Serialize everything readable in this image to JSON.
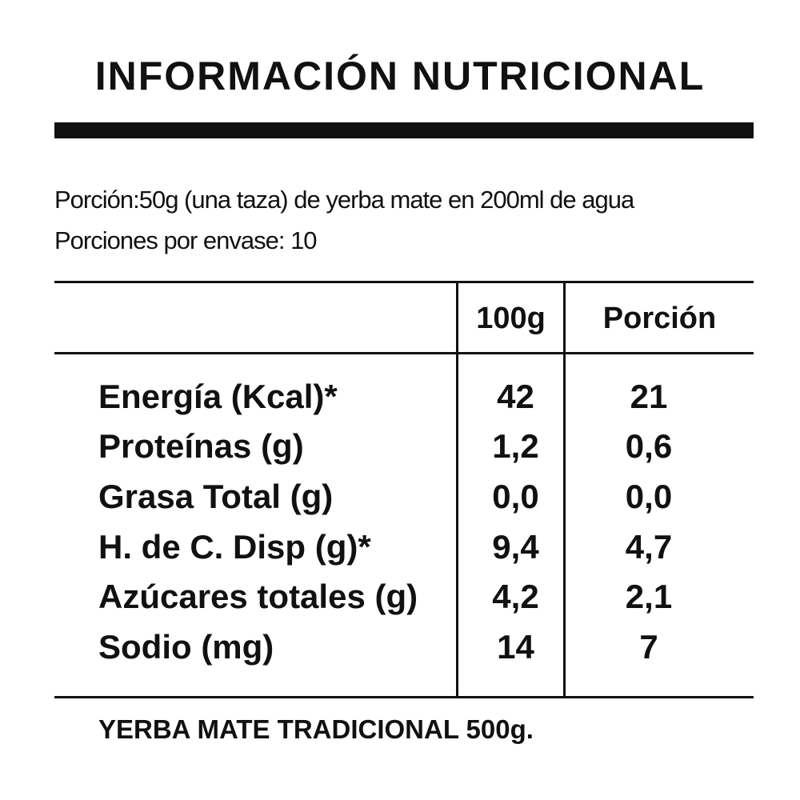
{
  "title": "INFORMACIÓN NUTRICIONAL",
  "serving": {
    "line1": "Porción:50g (una taza) de yerba mate en 200ml de agua",
    "line2": "Porciones por envase: 10"
  },
  "table": {
    "headers": {
      "per100": "100g",
      "portion": "Porción"
    },
    "rows": [
      {
        "label": "Energía (Kcal)*",
        "per100": "42",
        "portion": "21"
      },
      {
        "label": "Proteínas (g)",
        "per100": "1,2",
        "portion": "0,6"
      },
      {
        "label": "Grasa Total (g)",
        "per100": "0,0",
        "portion": "0,0"
      },
      {
        "label": "H. de C. Disp (g)*",
        "per100": "9,4",
        "portion": "4,7"
      },
      {
        "label": "Azúcares totales (g)",
        "per100": "4,2",
        "portion": "2,1"
      },
      {
        "label": "Sodio (mg)",
        "per100": "14",
        "portion": "7"
      }
    ]
  },
  "footer": "YERBA MATE TRADICIONAL 500g."
}
